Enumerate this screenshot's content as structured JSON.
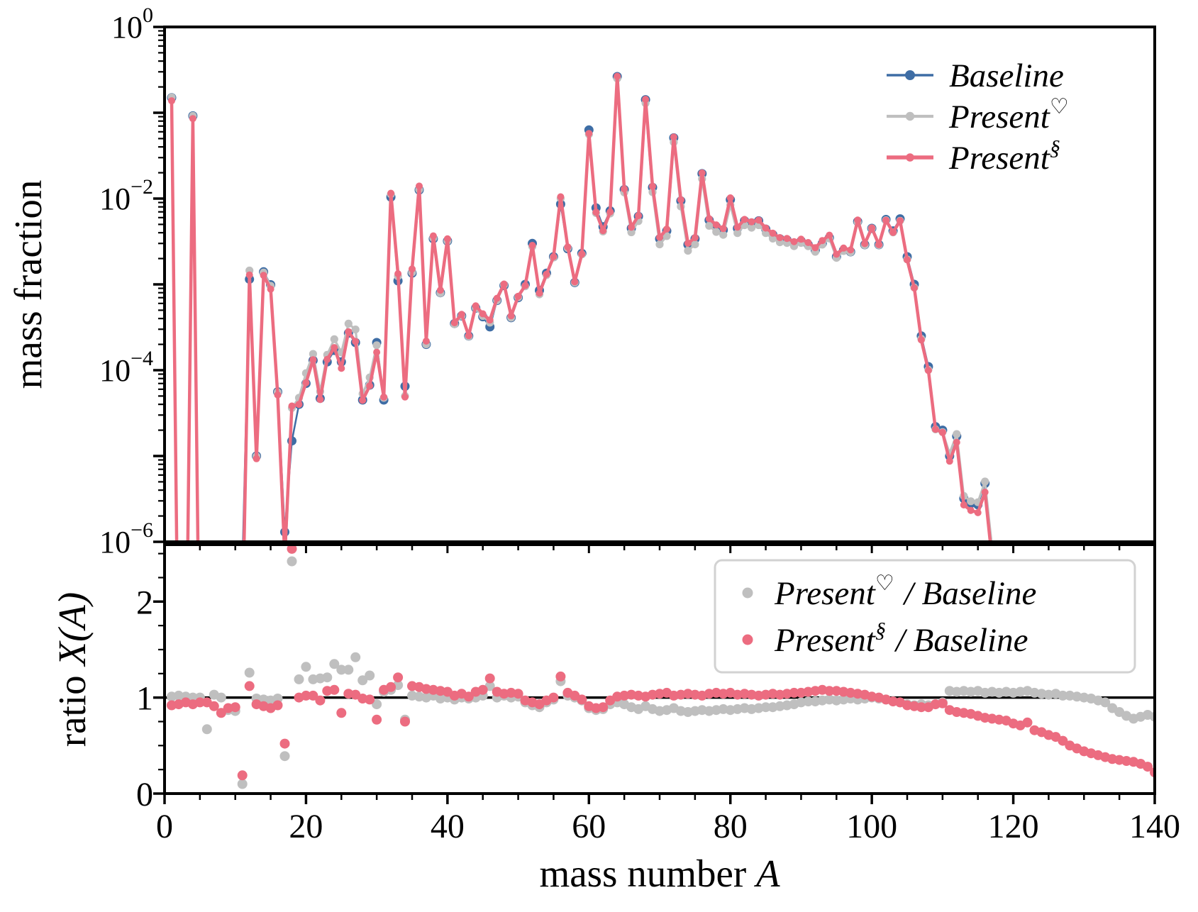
{
  "figure": {
    "background": "#ffffff",
    "axis_color": "#000000"
  },
  "top_panel": {
    "ylabel": "mass fraction",
    "yscale": "log",
    "ytick_labels": [
      {
        "base": "10",
        "exp": "0"
      },
      {
        "base": "10",
        "exp": "−2"
      },
      {
        "base": "10",
        "exp": "−4"
      },
      {
        "base": "10",
        "exp": "−6"
      }
    ],
    "ytick_exponents": [
      0,
      -2,
      -4,
      -6
    ]
  },
  "bottom_panel": {
    "ylabel_main": "ratio ",
    "ylabel_math": "X(A)",
    "yticks": [
      0,
      1,
      2
    ],
    "refline_y": 1
  },
  "xaxis": {
    "label_main": "mass number ",
    "label_var": "A",
    "ticks": [
      0,
      20,
      40,
      60,
      80,
      100,
      120,
      140
    ],
    "minor_step": 5,
    "range": [
      0,
      140
    ]
  },
  "top_legend": {
    "items": [
      {
        "label": "Baseline",
        "sup": "",
        "color": "#3e6da5"
      },
      {
        "label": "Present",
        "sup": "♡",
        "color": "#bfbfbf"
      },
      {
        "label": "Present",
        "sup": "§",
        "color": "#ec6c80"
      }
    ]
  },
  "bottom_legend": {
    "items": [
      {
        "label_main": "Present",
        "sup": "♡",
        "label_rest": "/ Baseline",
        "color": "#bfbfbf"
      },
      {
        "label_main": "Present",
        "sup": "§",
        "label_rest": "/ Baseline",
        "color": "#ec6c80"
      }
    ],
    "border_color": "#d2d2d2"
  },
  "chart_data": [
    {
      "type": "line",
      "panel": "top",
      "xlabel": "mass number A",
      "ylabel": "mass fraction",
      "yscale": "log",
      "xlim": [
        0,
        140
      ],
      "ylim": [
        1e-06,
        1
      ],
      "legend_position": "upper right",
      "grid": false,
      "x": [
        1,
        2,
        3,
        4,
        5,
        6,
        7,
        8,
        9,
        10,
        11,
        12,
        13,
        14,
        15,
        16,
        17,
        18,
        19,
        20,
        21,
        22,
        23,
        24,
        25,
        26,
        27,
        28,
        29,
        30,
        31,
        32,
        33,
        34,
        35,
        36,
        37,
        38,
        39,
        40,
        41,
        42,
        43,
        44,
        45,
        46,
        47,
        48,
        49,
        50,
        51,
        52,
        53,
        54,
        55,
        56,
        57,
        58,
        59,
        60,
        61,
        62,
        63,
        64,
        65,
        66,
        67,
        68,
        69,
        70,
        71,
        72,
        73,
        74,
        75,
        76,
        77,
        78,
        79,
        80,
        81,
        82,
        83,
        84,
        85,
        86,
        87,
        88,
        89,
        90,
        91,
        92,
        93,
        94,
        95,
        96,
        97,
        98,
        99,
        100,
        101,
        102,
        103,
        104,
        105,
        106,
        107,
        108,
        109,
        110,
        111,
        112,
        113,
        114,
        115,
        116,
        117,
        118,
        119,
        120,
        121,
        122,
        123,
        124,
        125,
        126,
        127,
        128,
        129,
        130,
        131,
        132,
        133,
        134,
        135,
        136,
        137,
        138,
        139,
        140
      ],
      "series": [
        {
          "name": "Baseline",
          "color": "#3e6da5",
          "values": [
            0.15,
            1e-08,
            1e-08,
            0.092,
            1e-08,
            1e-08,
            1e-08,
            1e-08,
            1e-08,
            2e-08,
            5e-07,
            0.00115,
            1e-05,
            0.0014,
            0.00099,
            5.6e-05,
            1.3e-06,
            1.5e-05,
            4e-05,
            7e-05,
            0.00013,
            4.7e-05,
            0.000125,
            0.00017,
            0.000125,
            0.00027,
            0.00021,
            4.5e-05,
            6.7e-05,
            0.00021,
            4.5e-05,
            0.0104,
            0.0011,
            6.5e-05,
            0.00135,
            0.0126,
            0.0002,
            0.0034,
            0.0008,
            0.0032,
            0.00035,
            0.00043,
            0.00025,
            0.00053,
            0.00042,
            0.00032,
            0.00065,
            0.00097,
            0.00041,
            0.0007,
            0.001,
            0.003,
            0.00085,
            0.00135,
            0.0021,
            0.0086,
            0.0026,
            0.00105,
            0.0023,
            0.063,
            0.0078,
            0.0047,
            0.0072,
            0.264,
            0.0127,
            0.0045,
            0.0062,
            0.142,
            0.0135,
            0.0034,
            0.0042,
            0.051,
            0.0094,
            0.0029,
            0.0034,
            0.0195,
            0.0056,
            0.0047,
            0.0043,
            0.0097,
            0.0045,
            0.0055,
            0.0052,
            0.0055,
            0.0044,
            0.0038,
            0.0034,
            0.0033,
            0.003,
            0.0032,
            0.0029,
            0.0025,
            0.003,
            0.0035,
            0.0021,
            0.0025,
            0.0024,
            0.0054,
            0.0029,
            0.0045,
            0.0029,
            0.0057,
            0.0042,
            0.0058,
            0.0021,
            0.001,
            0.00025,
            0.00011,
            2.2e-05,
            2e-05,
            1e-05,
            1.7e-05,
            3.2e-06,
            2.8e-06,
            2.7e-06,
            4.8e-06,
            8e-07,
            3e-07,
            1e-08,
            1e-08,
            1e-08,
            1e-08,
            1e-08,
            1e-08,
            1e-08,
            1e-08,
            1e-08,
            1e-08,
            1e-08,
            1e-08,
            1e-08,
            1e-08,
            1e-08,
            1e-08,
            1e-08,
            1e-08,
            1e-08,
            1e-08,
            1e-08,
            1e-08
          ]
        },
        {
          "name": "Present♡",
          "color": "#bfbfbf",
          "derived": "Baseline values multiplied by ratio series 'Present♡ / Baseline'"
        },
        {
          "name": "Present§",
          "color": "#ec6c80",
          "derived": "Baseline values multiplied by ratio series 'Present§ / Baseline'"
        }
      ]
    },
    {
      "type": "scatter",
      "panel": "bottom",
      "ylabel": "ratio X(A)",
      "xlim": [
        0,
        140
      ],
      "ylim": [
        0,
        2.59
      ],
      "refline_y": 1,
      "legend_position": "upper right",
      "x": [
        1,
        2,
        3,
        4,
        5,
        6,
        7,
        8,
        9,
        10,
        11,
        12,
        13,
        14,
        15,
        16,
        17,
        18,
        19,
        20,
        21,
        22,
        23,
        24,
        25,
        26,
        27,
        28,
        29,
        30,
        31,
        32,
        33,
        34,
        35,
        36,
        37,
        38,
        39,
        40,
        41,
        42,
        43,
        44,
        45,
        46,
        47,
        48,
        49,
        50,
        51,
        52,
        53,
        54,
        55,
        56,
        57,
        58,
        59,
        60,
        61,
        62,
        63,
        64,
        65,
        66,
        67,
        68,
        69,
        70,
        71,
        72,
        73,
        74,
        75,
        76,
        77,
        78,
        79,
        80,
        81,
        82,
        83,
        84,
        85,
        86,
        87,
        88,
        89,
        90,
        91,
        92,
        93,
        94,
        95,
        96,
        97,
        98,
        99,
        100,
        101,
        102,
        103,
        104,
        105,
        106,
        107,
        108,
        109,
        110,
        111,
        112,
        113,
        114,
        115,
        116,
        117,
        118,
        119,
        120,
        121,
        122,
        123,
        124,
        125,
        126,
        127,
        128,
        129,
        130,
        131,
        132,
        133,
        134,
        135,
        136,
        137,
        138,
        139,
        140
      ],
      "series": [
        {
          "name": "Present♡ / Baseline",
          "color": "#bfbfbf",
          "values": [
            1.01,
            1.02,
            1.01,
            1.0,
            1.0,
            0.67,
            1.03,
            1.0,
            0.87,
            0.86,
            0.1,
            1.26,
            0.99,
            0.98,
            0.97,
            0.99,
            0.39,
            2.42,
            1.19,
            1.32,
            1.19,
            1.2,
            1.21,
            1.35,
            1.29,
            1.29,
            1.42,
            1.18,
            1.23,
            0.93,
            1.06,
            1.08,
            1.13,
            0.77,
            1.02,
            1.01,
            1.0,
            1.02,
            0.99,
            1.0,
            0.98,
            1.0,
            0.99,
            1.0,
            1.02,
            1.12,
            1.0,
            1.02,
            1.0,
            1.01,
            0.95,
            0.92,
            0.9,
            0.95,
            0.98,
            1.17,
            1.02,
            1.0,
            0.97,
            0.89,
            0.87,
            0.88,
            0.93,
            0.95,
            0.93,
            0.9,
            0.88,
            0.91,
            0.88,
            0.86,
            0.87,
            0.89,
            0.86,
            0.85,
            0.86,
            0.87,
            0.86,
            0.87,
            0.88,
            0.87,
            0.88,
            0.89,
            0.88,
            0.89,
            0.9,
            0.9,
            0.91,
            0.92,
            0.93,
            0.95,
            0.96,
            0.96,
            0.97,
            0.98,
            0.97,
            0.98,
            0.99,
            0.98,
            0.99,
            1.0,
            0.99,
            0.98,
            0.96,
            0.95,
            0.93,
            0.92,
            0.93,
            0.92,
            0.93,
            0.95,
            1.07,
            1.06,
            1.07,
            1.06,
            1.07,
            1.05,
            1.06,
            1.05,
            1.06,
            1.05,
            1.06,
            1.07,
            1.05,
            1.04,
            1.03,
            1.04,
            1.02,
            1.02,
            1.01,
            1.0,
            0.99,
            0.97,
            0.95,
            0.89,
            0.85,
            0.81,
            0.78,
            0.8,
            0.82,
            0.8
          ]
        },
        {
          "name": "Present§ / Baseline",
          "color": "#ec6c80",
          "values": [
            0.92,
            0.93,
            0.95,
            0.93,
            0.95,
            0.95,
            0.91,
            0.84,
            0.89,
            0.9,
            0.19,
            1.12,
            0.93,
            0.91,
            0.89,
            0.92,
            0.52,
            2.55,
            1.0,
            1.02,
            1.02,
            0.97,
            1.07,
            1.08,
            0.84,
            1.04,
            1.03,
            0.99,
            0.98,
            0.77,
            1.08,
            1.11,
            1.21,
            0.75,
            1.12,
            1.11,
            1.09,
            1.08,
            1.07,
            1.06,
            1.02,
            1.04,
            1.01,
            1.06,
            1.08,
            1.2,
            1.06,
            1.04,
            1.05,
            1.04,
            0.97,
            0.95,
            0.93,
            0.97,
            1.0,
            1.22,
            1.05,
            1.02,
            0.98,
            0.91,
            0.89,
            0.9,
            0.97,
            1.01,
            1.02,
            1.03,
            1.02,
            1.01,
            1.03,
            1.04,
            1.05,
            1.02,
            1.03,
            1.04,
            1.03,
            1.02,
            1.04,
            1.05,
            1.04,
            1.05,
            1.03,
            1.04,
            1.03,
            1.02,
            1.03,
            1.04,
            1.03,
            1.04,
            1.05,
            1.05,
            1.06,
            1.07,
            1.08,
            1.07,
            1.07,
            1.06,
            1.05,
            1.04,
            1.03,
            1.01,
            1.0,
            0.98,
            0.96,
            0.95,
            0.92,
            0.91,
            0.9,
            0.9,
            0.93,
            0.94,
            0.87,
            0.85,
            0.84,
            0.83,
            0.81,
            0.79,
            0.78,
            0.77,
            0.76,
            0.73,
            0.71,
            0.74,
            0.66,
            0.64,
            0.61,
            0.59,
            0.55,
            0.5,
            0.47,
            0.44,
            0.42,
            0.4,
            0.38,
            0.36,
            0.35,
            0.34,
            0.33,
            0.31,
            0.28,
            0.22
          ]
        }
      ]
    }
  ]
}
